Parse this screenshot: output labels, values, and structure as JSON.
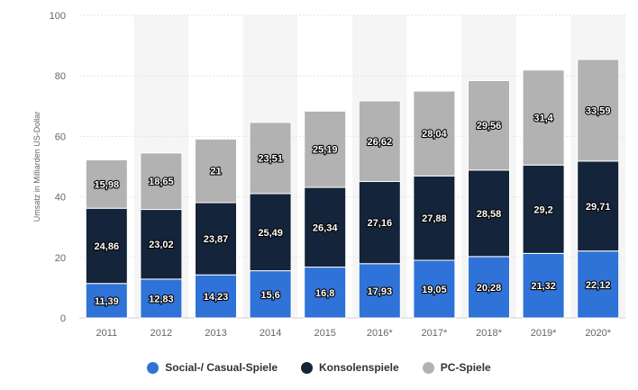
{
  "chart_data": {
    "type": "bar",
    "stacked": true,
    "title": "",
    "xlabel": "",
    "ylabel": "Umsatz in Milliarden US-Dollar",
    "ylim": [
      0,
      100
    ],
    "yticks": [
      0,
      20,
      40,
      60,
      80,
      100
    ],
    "categories": [
      "2011",
      "2012",
      "2013",
      "2014",
      "2015",
      "2016*",
      "2017*",
      "2018*",
      "2019*",
      "2020*"
    ],
    "series": [
      {
        "name": "Social-/ Casual-Spiele",
        "color": "#2f72d8",
        "values": [
          11.39,
          12.83,
          14.23,
          15.6,
          16.8,
          17.93,
          19.05,
          20.28,
          21.32,
          22.12
        ],
        "labels": [
          "11,39",
          "12,83",
          "14,23",
          "15,6",
          "16,8",
          "17,93",
          "19,05",
          "20,28",
          "21,32",
          "22,12"
        ]
      },
      {
        "name": "Konsolenspiele",
        "color": "#14243a",
        "values": [
          24.86,
          23.02,
          23.87,
          25.49,
          26.34,
          27.16,
          27.88,
          28.58,
          29.2,
          29.71
        ],
        "labels": [
          "24,86",
          "23,02",
          "23,87",
          "25,49",
          "26,34",
          "27,16",
          "27,88",
          "28,58",
          "29,2",
          "29,71"
        ]
      },
      {
        "name": "PC-Spiele",
        "color": "#b2b2b2",
        "values": [
          15.98,
          18.65,
          21,
          23.51,
          25.19,
          26.62,
          28.04,
          29.56,
          31.4,
          33.59
        ],
        "labels": [
          "15,98",
          "18,65",
          "21",
          "23,51",
          "25,19",
          "26,62",
          "28,04",
          "29,56",
          "31,4",
          "33,59"
        ]
      }
    ],
    "grid": true,
    "legend_position": "bottom"
  }
}
